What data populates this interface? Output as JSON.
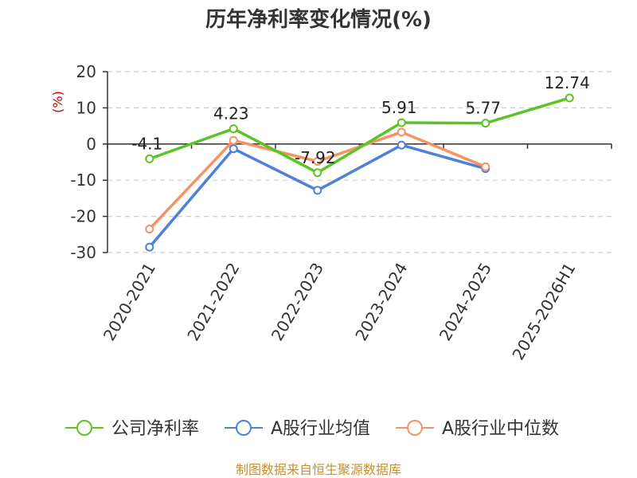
{
  "chart_data": {
    "type": "line",
    "title": "历年净利率变化情况(%)",
    "y_unit": "(%)",
    "categories": [
      "2020-2021",
      "2021-2022",
      "2022-2023",
      "2023-2024",
      "2024-2025",
      "2025-2026H1"
    ],
    "ylim": [
      -30,
      20
    ],
    "yticks": [
      20,
      10,
      0,
      -10,
      -20,
      -30
    ],
    "grid": true,
    "legend_position": "bottom",
    "series": [
      {
        "name": "公司净利率",
        "color": "#5bc425",
        "values": [
          -4.1,
          4.23,
          -7.92,
          5.91,
          5.77,
          12.74
        ],
        "labels": [
          "-4.1",
          "4.23",
          "-7.92",
          "5.91",
          "5.77",
          "12.74"
        ]
      },
      {
        "name": "A股行业均值",
        "color": "#4f81d6",
        "values": [
          -28.5,
          -1.3,
          -12.8,
          -0.3,
          -6.8,
          null
        ]
      },
      {
        "name": "A股行业中位数",
        "color": "#f59364",
        "values": [
          -23.5,
          1.0,
          -4.8,
          3.3,
          -6.3,
          null
        ]
      }
    ],
    "source": "制图数据来自恒生聚源数据库"
  }
}
